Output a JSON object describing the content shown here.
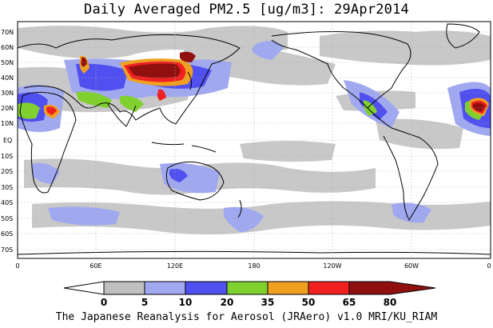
{
  "title": "Daily Averaged PM2.5 [ug/m3]: 29Apr2014",
  "footer": "The Japanese Reanalysis for Aerosol (JRAero) v1.0 MRI/KU_RIAM",
  "map": {
    "lat_labels": [
      "70N",
      "60N",
      "50N",
      "40N",
      "30N",
      "20N",
      "10N",
      "EQ",
      "10S",
      "20S",
      "30S",
      "40S",
      "50S",
      "60S",
      "70S"
    ],
    "lon_labels": [
      "0",
      "60E",
      "120E",
      "180",
      "120W",
      "60W",
      "0"
    ]
  },
  "colorbar": {
    "levels": [
      "0",
      "5",
      "10",
      "20",
      "35",
      "50",
      "65",
      "80"
    ],
    "colors": [
      "#ffffff",
      "#c0c0c0",
      "#a0a8f0",
      "#5050f0",
      "#80d030",
      "#f0a020",
      "#f02020",
      "#901010"
    ]
  }
}
